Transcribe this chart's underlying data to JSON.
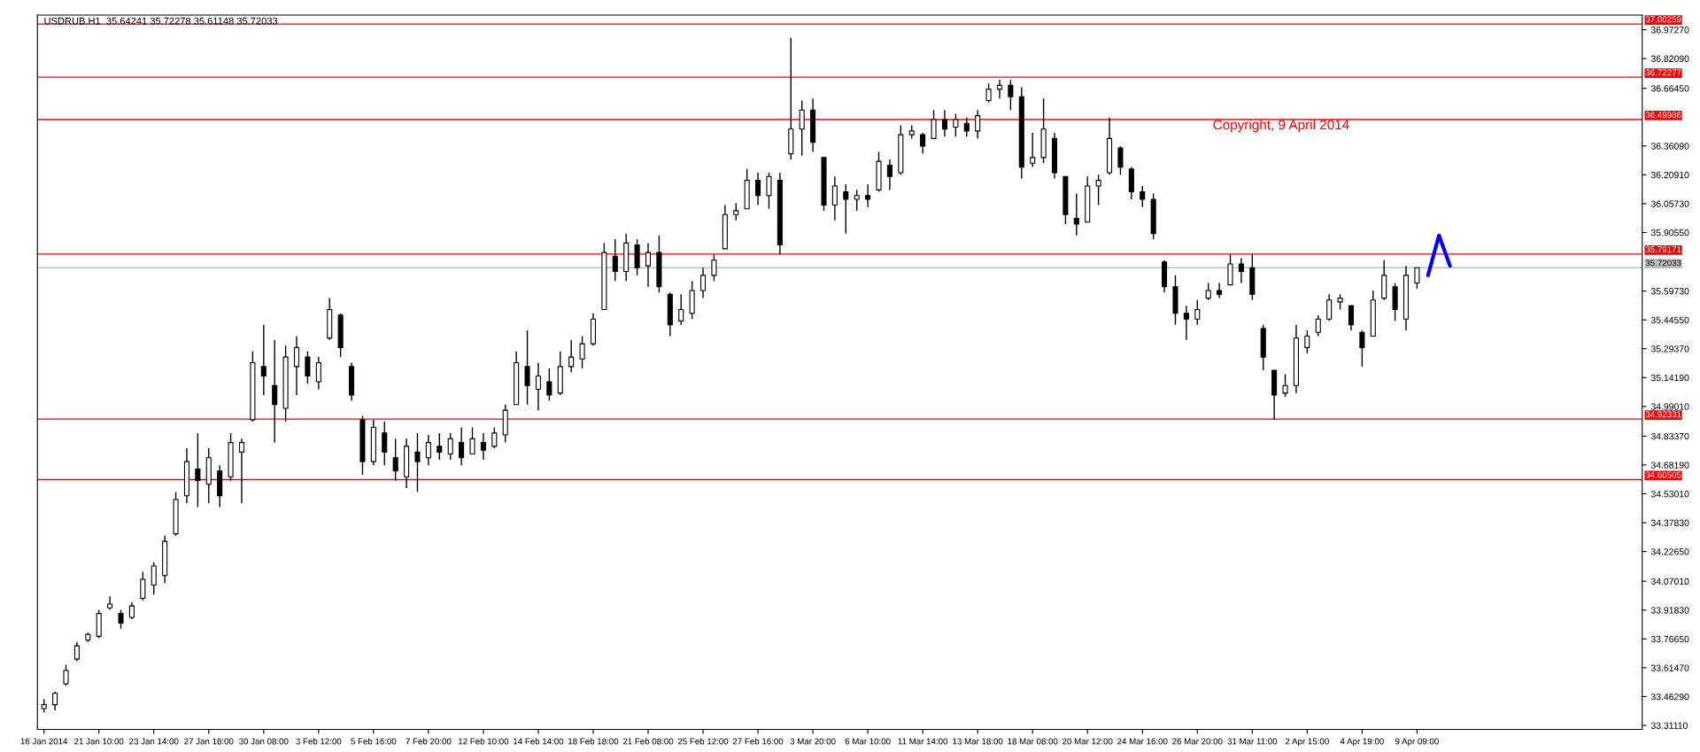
{
  "chart_data": {
    "type": "candlestick",
    "title": "USDRUB.H1  35.64241 35.72278 35.61148 35.72033",
    "annotations": [
      "Copyright, 9 April 2014"
    ],
    "categories": [
      "16 Jan 2014",
      null,
      null,
      null,
      null,
      "21 Jan 10:00",
      null,
      null,
      null,
      null,
      "23 Jan 14:00",
      null,
      null,
      null,
      null,
      "27 Jan 18:00",
      null,
      null,
      null,
      null,
      "30 Jan 08:00",
      null,
      null,
      null,
      null,
      "3 Feb 12:00",
      null,
      null,
      null,
      null,
      "5 Feb 16:00",
      null,
      null,
      null,
      null,
      "7 Feb 20:00",
      null,
      null,
      null,
      null,
      "12 Feb 10:00",
      null,
      null,
      null,
      null,
      "14 Feb 14:00",
      null,
      null,
      null,
      null,
      "18 Feb 18:00",
      null,
      null,
      null,
      null,
      "21 Feb 08:00",
      null,
      null,
      null,
      null,
      "25 Feb 12:00",
      null,
      null,
      null,
      null,
      "27 Feb 16:00",
      null,
      null,
      null,
      null,
      "3 Mar 20:00",
      null,
      null,
      null,
      null,
      "6 Mar 10:00",
      null,
      null,
      null,
      null,
      "11 Mar 14:00",
      null,
      null,
      null,
      null,
      "13 Mar 18:00",
      null,
      null,
      null,
      null,
      "18 Mar 08:00",
      null,
      null,
      null,
      null,
      "20 Mar 12:00",
      null,
      null,
      null,
      null,
      "24 Mar 16:00",
      null,
      null,
      null,
      null,
      "26 Mar 20:00",
      null,
      null,
      null,
      null,
      "31 Mar 11:00",
      null,
      null,
      null,
      null,
      "2 Apr 15:00",
      null,
      null,
      null,
      null,
      "4 Apr 19:00",
      null,
      null,
      null,
      null,
      "9 Apr 09:00",
      null,
      null,
      null,
      null,
      null,
      null,
      null,
      null,
      null,
      null,
      null,
      null,
      null,
      null,
      null,
      null,
      null,
      null,
      null,
      null
    ],
    "series": [
      {
        "color": "#000000",
        "ohlc": [
          [
            33.4,
            33.45,
            33.38,
            33.42
          ],
          [
            33.42,
            33.49,
            33.39,
            33.48
          ],
          [
            33.53,
            33.63,
            33.52,
            33.6
          ],
          [
            33.66,
            33.75,
            33.65,
            33.73
          ],
          [
            33.76,
            33.8,
            33.75,
            33.79
          ],
          [
            33.78,
            33.92,
            33.77,
            33.9
          ],
          [
            33.93,
            33.99,
            33.92,
            33.95
          ],
          [
            33.9,
            33.92,
            33.82,
            33.85
          ],
          [
            33.88,
            33.96,
            33.87,
            33.94
          ],
          [
            33.98,
            34.12,
            33.97,
            34.08
          ],
          [
            34.05,
            34.17,
            34.0,
            34.15
          ],
          [
            34.1,
            34.31,
            34.06,
            34.28
          ],
          [
            34.32,
            34.54,
            34.31,
            34.5
          ],
          [
            34.52,
            34.77,
            34.48,
            34.7
          ],
          [
            34.66,
            34.85,
            34.46,
            34.6
          ],
          [
            34.58,
            34.77,
            34.48,
            34.72
          ],
          [
            34.65,
            34.68,
            34.46,
            34.52
          ],
          [
            34.62,
            34.85,
            34.6,
            34.8
          ],
          [
            34.75,
            34.82,
            34.48,
            34.8
          ],
          [
            34.92,
            35.28,
            34.91,
            35.22
          ],
          [
            35.2,
            35.42,
            35.05,
            35.15
          ],
          [
            35.1,
            35.34,
            34.8,
            35.0
          ],
          [
            34.98,
            35.31,
            34.91,
            35.25
          ],
          [
            35.2,
            35.36,
            35.05,
            35.3
          ],
          [
            35.25,
            35.28,
            35.11,
            35.15
          ],
          [
            35.12,
            35.25,
            35.08,
            35.22
          ],
          [
            35.35,
            35.56,
            35.34,
            35.5
          ],
          [
            35.47,
            35.48,
            35.25,
            35.3
          ],
          [
            35.2,
            35.22,
            35.02,
            35.05
          ],
          [
            34.92,
            34.94,
            34.63,
            34.7
          ],
          [
            34.7,
            34.92,
            34.68,
            34.88
          ],
          [
            34.85,
            34.91,
            34.68,
            34.75
          ],
          [
            34.72,
            34.82,
            34.6,
            34.65
          ],
          [
            34.62,
            34.82,
            34.56,
            34.78
          ],
          [
            34.75,
            34.85,
            34.54,
            34.7
          ],
          [
            34.72,
            34.84,
            34.68,
            34.8
          ],
          [
            34.78,
            34.85,
            34.71,
            34.75
          ],
          [
            34.74,
            34.85,
            34.71,
            34.82
          ],
          [
            34.8,
            34.88,
            34.68,
            34.72
          ],
          [
            34.74,
            34.88,
            34.74,
            34.82
          ],
          [
            34.8,
            34.85,
            34.71,
            34.76
          ],
          [
            34.78,
            34.88,
            34.77,
            34.85
          ],
          [
            34.84,
            35.0,
            34.8,
            34.97
          ],
          [
            35.0,
            35.28,
            35.0,
            35.22
          ],
          [
            35.2,
            35.39,
            35.0,
            35.1
          ],
          [
            35.08,
            35.22,
            34.97,
            35.15
          ],
          [
            35.12,
            35.19,
            35.02,
            35.05
          ],
          [
            35.06,
            35.28,
            35.05,
            35.2
          ],
          [
            35.2,
            35.34,
            35.17,
            35.25
          ],
          [
            35.24,
            35.36,
            35.19,
            35.32
          ],
          [
            35.32,
            35.48,
            35.31,
            35.45
          ],
          [
            35.5,
            35.85,
            35.5,
            35.8
          ],
          [
            35.78,
            35.87,
            35.65,
            35.7
          ],
          [
            35.7,
            35.9,
            35.65,
            35.85
          ],
          [
            35.84,
            35.87,
            35.68,
            35.72
          ],
          [
            35.73,
            35.85,
            35.62,
            35.8
          ],
          [
            35.8,
            35.89,
            35.59,
            35.62
          ],
          [
            35.58,
            35.59,
            35.36,
            35.42
          ],
          [
            35.44,
            35.58,
            35.42,
            35.5
          ],
          [
            35.48,
            35.65,
            35.45,
            35.6
          ],
          [
            35.6,
            35.72,
            35.56,
            35.68
          ],
          [
            35.68,
            35.79,
            35.65,
            35.76
          ],
          [
            35.82,
            36.05,
            35.82,
            36.0
          ],
          [
            36.0,
            36.06,
            35.97,
            36.02
          ],
          [
            36.03,
            36.24,
            36.03,
            36.18
          ],
          [
            36.18,
            36.22,
            36.05,
            36.1
          ],
          [
            36.1,
            36.22,
            36.03,
            36.2
          ],
          [
            36.18,
            36.22,
            35.79,
            35.84
          ],
          [
            36.32,
            36.93,
            36.29,
            36.45
          ],
          [
            36.45,
            36.6,
            36.31,
            36.55
          ],
          [
            36.55,
            36.61,
            36.33,
            36.38
          ],
          [
            36.3,
            36.3,
            36.02,
            36.05
          ],
          [
            36.05,
            36.2,
            35.97,
            36.15
          ],
          [
            36.12,
            36.16,
            35.9,
            36.08
          ],
          [
            36.08,
            36.13,
            36.02,
            36.1
          ],
          [
            36.1,
            36.16,
            36.04,
            36.08
          ],
          [
            36.13,
            36.33,
            36.12,
            36.28
          ],
          [
            36.26,
            36.29,
            36.13,
            36.2
          ],
          [
            36.22,
            36.47,
            36.21,
            36.42
          ],
          [
            36.42,
            36.47,
            36.4,
            36.44
          ],
          [
            36.42,
            36.43,
            36.32,
            36.36
          ],
          [
            36.4,
            36.55,
            36.4,
            36.5
          ],
          [
            36.5,
            36.55,
            36.41,
            36.45
          ],
          [
            36.46,
            36.53,
            36.41,
            36.5
          ],
          [
            36.48,
            36.51,
            36.41,
            36.44
          ],
          [
            36.44,
            36.55,
            36.4,
            36.52
          ],
          [
            36.6,
            36.69,
            36.59,
            36.66
          ],
          [
            36.66,
            36.71,
            36.61,
            36.68
          ],
          [
            36.68,
            36.71,
            36.55,
            36.62
          ],
          [
            36.62,
            36.67,
            36.19,
            36.25
          ],
          [
            36.27,
            36.43,
            36.25,
            36.3
          ],
          [
            36.3,
            36.61,
            36.27,
            36.45
          ],
          [
            36.4,
            36.43,
            36.19,
            36.22
          ],
          [
            36.2,
            36.2,
            35.95,
            36.0
          ],
          [
            35.98,
            36.11,
            35.89,
            35.95
          ],
          [
            35.96,
            36.2,
            35.96,
            36.15
          ],
          [
            36.15,
            36.21,
            36.05,
            36.18
          ],
          [
            36.22,
            36.51,
            36.21,
            36.4
          ],
          [
            36.35,
            36.36,
            36.21,
            36.25
          ],
          [
            36.24,
            36.25,
            36.08,
            36.12
          ],
          [
            36.12,
            36.15,
            36.04,
            36.08
          ],
          [
            36.08,
            36.11,
            35.87,
            35.9
          ],
          [
            35.75,
            35.76,
            35.59,
            35.62
          ],
          [
            35.62,
            35.68,
            35.42,
            35.48
          ],
          [
            35.48,
            35.52,
            35.34,
            35.45
          ],
          [
            35.45,
            35.55,
            35.42,
            35.5
          ],
          [
            35.56,
            35.64,
            35.55,
            35.6
          ],
          [
            35.6,
            35.64,
            35.56,
            35.58
          ],
          [
            35.63,
            35.79,
            35.63,
            35.74
          ],
          [
            35.74,
            35.77,
            35.64,
            35.7
          ],
          [
            35.72,
            35.79,
            35.55,
            35.58
          ],
          [
            35.4,
            35.42,
            35.18,
            35.25
          ],
          [
            35.18,
            35.18,
            34.92,
            35.05
          ],
          [
            35.06,
            35.16,
            35.04,
            35.1
          ],
          [
            35.1,
            35.42,
            35.06,
            35.35
          ],
          [
            35.3,
            35.39,
            35.27,
            35.36
          ],
          [
            35.38,
            35.47,
            35.36,
            35.45
          ],
          [
            35.45,
            35.58,
            35.44,
            35.55
          ],
          [
            35.54,
            35.58,
            35.5,
            35.56
          ],
          [
            35.52,
            35.52,
            35.39,
            35.42
          ],
          [
            35.38,
            35.39,
            35.2,
            35.3
          ],
          [
            35.36,
            35.6,
            35.36,
            35.55
          ],
          [
            35.56,
            35.76,
            35.55,
            35.68
          ],
          [
            35.62,
            35.64,
            35.44,
            35.5
          ],
          [
            35.45,
            35.73,
            35.39,
            35.68
          ],
          [
            35.64,
            35.72,
            35.61,
            35.72
          ],
          null,
          null,
          null,
          null,
          null,
          null,
          null,
          null,
          null,
          null,
          null,
          null,
          null,
          null,
          null,
          null,
          null,
          null,
          null,
          null
        ]
      },
      {
        "type": "line",
        "color": "#0000ff",
        "values": [
          null,
          null,
          null,
          null,
          null,
          null,
          null,
          null,
          null,
          null,
          null,
          null,
          null,
          null,
          null,
          null,
          null,
          null,
          null,
          null,
          null,
          null,
          null,
          null,
          null,
          null,
          null,
          null,
          null,
          null,
          null,
          null,
          null,
          null,
          null,
          null,
          null,
          null,
          null,
          null,
          null,
          null,
          null,
          null,
          null,
          null,
          null,
          null,
          null,
          null,
          null,
          null,
          null,
          null,
          null,
          null,
          null,
          null,
          null,
          null,
          null,
          null,
          null,
          null,
          null,
          null,
          null,
          null,
          null,
          null,
          null,
          null,
          null,
          null,
          null,
          null,
          null,
          null,
          null,
          null,
          null,
          null,
          null,
          null,
          null,
          null,
          null,
          null,
          null,
          null,
          null,
          null,
          null,
          null,
          null,
          null,
          null,
          null,
          null,
          null,
          null,
          null,
          null,
          null,
          null,
          null,
          null,
          null,
          null,
          null,
          null,
          null,
          null,
          null,
          null,
          null,
          null,
          null,
          null,
          null,
          null,
          null,
          null,
          null,
          null,
          null,
          35.68,
          35.89,
          35.73,
          null,
          null,
          null,
          null,
          null,
          null,
          null,
          null,
          null,
          null,
          null,
          null,
          null,
          null,
          null,
          null,
          null
        ]
      }
    ],
    "ylim": [
      33.29,
      37.05
    ],
    "yticks": [
      {
        "value": 36.9727,
        "label": "36.97270"
      },
      {
        "value": 36.8209,
        "label": "36.82090"
      },
      {
        "value": 36.6645,
        "label": "36.66450"
      },
      {
        "value": 36.3609,
        "label": "36.36090"
      },
      {
        "value": 36.2091,
        "label": "36.20910"
      },
      {
        "value": 36.0573,
        "label": "36.05730"
      },
      {
        "value": 35.9055,
        "label": "35.90550"
      },
      {
        "value": 35.5973,
        "label": "35.59730"
      },
      {
        "value": 35.4455,
        "label": "35.44550"
      },
      {
        "value": 35.2937,
        "label": "35.29370"
      },
      {
        "value": 35.1419,
        "label": "35.14190"
      },
      {
        "value": 34.9901,
        "label": "34.99010"
      },
      {
        "value": 34.8337,
        "label": "34.83370"
      },
      {
        "value": 34.6819,
        "label": "34.68190"
      },
      {
        "value": 34.5301,
        "label": "34.53010"
      },
      {
        "value": 34.3783,
        "label": "34.37830"
      },
      {
        "value": 34.2265,
        "label": "34.22650"
      },
      {
        "value": 34.0701,
        "label": "34.07010"
      },
      {
        "value": 33.9183,
        "label": "33.91830"
      },
      {
        "value": 33.7665,
        "label": "33.76650"
      },
      {
        "value": 33.6147,
        "label": "33.61470"
      },
      {
        "value": 33.4629,
        "label": "33.46290"
      },
      {
        "value": 33.3111,
        "label": "33.31110"
      }
    ],
    "ref_lines": [
      {
        "axis": "y",
        "value": 37.00259,
        "label": "37.00259",
        "color": "#ff0000"
      },
      {
        "axis": "y",
        "value": 36.72277,
        "label": "36.72277",
        "color": "#ff0000"
      },
      {
        "axis": "y",
        "value": 36.49986,
        "label": "36.49986",
        "color": "#ff0000"
      },
      {
        "axis": "y",
        "value": 35.79171,
        "label": "35.79171",
        "color": "#ff0000"
      },
      {
        "axis": "y",
        "value": 35.72033,
        "label": "35.72033",
        "color": "#c0c0c0"
      },
      {
        "axis": "y",
        "value": 34.92331,
        "label": "34.92331",
        "color": "#ff0000"
      },
      {
        "axis": "y",
        "value": 34.60505,
        "label": "34.60505",
        "color": "#ff0000"
      }
    ],
    "grid": false,
    "legend": false
  }
}
